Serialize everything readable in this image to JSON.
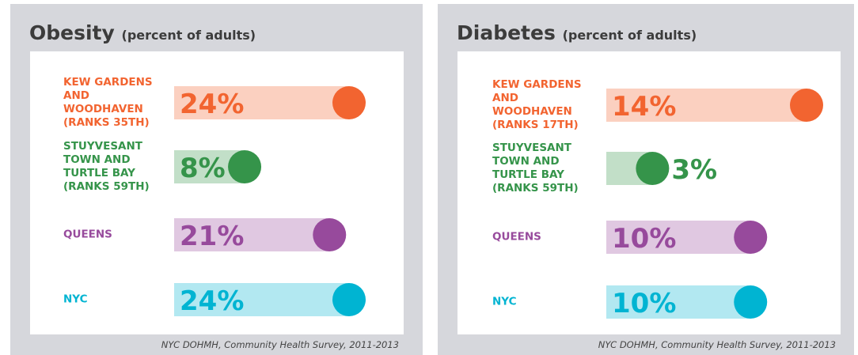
{
  "chart_data": [
    {
      "type": "bar",
      "title": "Obesity",
      "subtitle": "(percent of adults)",
      "source": "NYC DOHMH, Community Health Survey, 2011-2013",
      "categories": [
        "KEW GARDENS AND WOODHAVEN (RANKS 35TH)",
        "STUYVESANT TOWN AND TURTLE BAY (RANKS 59TH)",
        "QUEENS",
        "NYC"
      ],
      "values": [
        24,
        8,
        21,
        24
      ],
      "value_labels": [
        "24%",
        "8%",
        "21%",
        "24%"
      ],
      "colors": [
        "#f26430",
        "#35944a",
        "#974a9c",
        "#00b4d2"
      ],
      "xlim": [
        -2.8,
        24
      ]
    },
    {
      "type": "bar",
      "title": "Diabetes",
      "subtitle": "(percent of adults)",
      "source": "NYC DOHMH, Community Health Survey, 2011-2013",
      "categories": [
        "KEW GARDENS AND WOODHAVEN (RANKS 17TH)",
        "STUYVESANT TOWN AND TURTLE BAY (RANKS 59TH)",
        "QUEENS",
        "NYC"
      ],
      "values": [
        14,
        3,
        10,
        10
      ],
      "value_labels": [
        "14%",
        "3%",
        "10%",
        "10%"
      ],
      "colors": [
        "#f26430",
        "#35944a",
        "#974a9c",
        "#00b4d2"
      ],
      "xlim": [
        -0.3,
        14
      ]
    }
  ]
}
